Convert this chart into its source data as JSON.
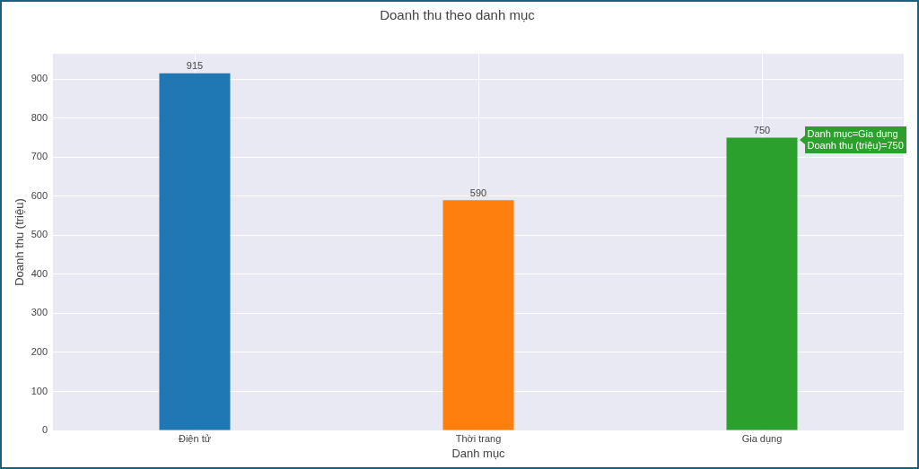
{
  "chart_data": {
    "type": "bar",
    "title": "Doanh thu theo danh mục",
    "xlabel": "Danh mục",
    "ylabel": "Doanh thu (triệu)",
    "categories": [
      "Điện tử",
      "Thời trang",
      "Gia dụng"
    ],
    "values": [
      915,
      590,
      750
    ],
    "colors": [
      "#1f77b4",
      "#ff7f0e",
      "#2ca02c"
    ],
    "ylim": [
      0,
      965
    ],
    "yticks": [
      0,
      100,
      200,
      300,
      400,
      500,
      600,
      700,
      800,
      900
    ],
    "grid": true,
    "data_labels": true,
    "annotations": [
      "Danh mục=Gia dụng\nDoanh thu (triệu)=750"
    ]
  }
}
